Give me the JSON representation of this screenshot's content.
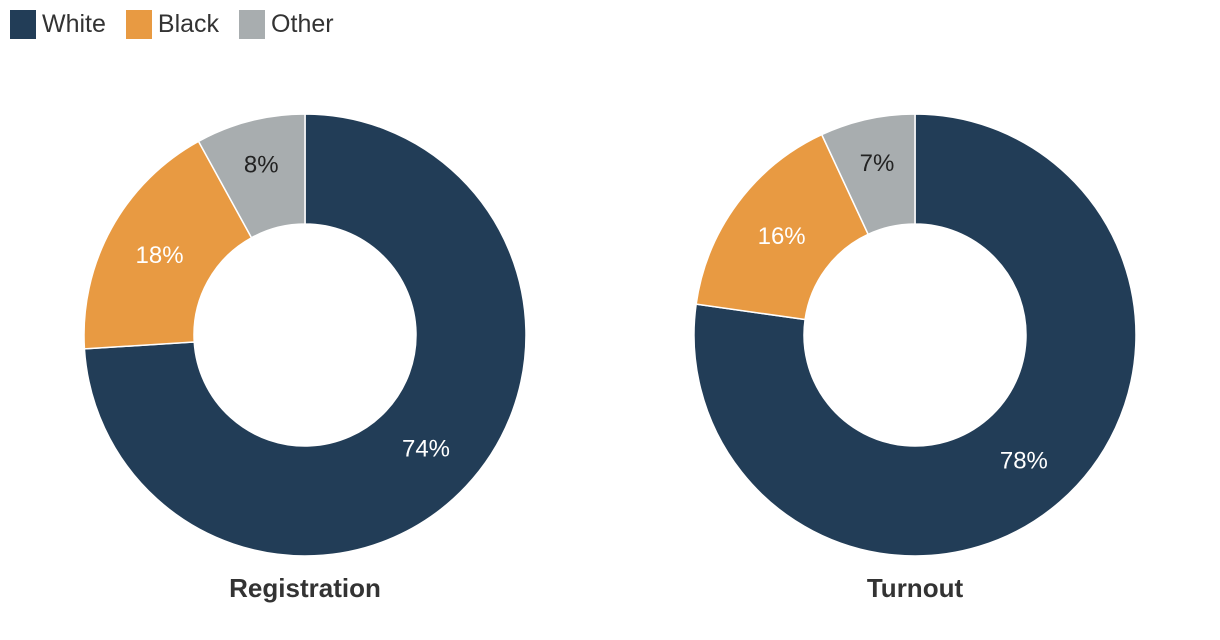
{
  "legend": {
    "items": [
      {
        "label": "White",
        "color": "#223d57"
      },
      {
        "label": "Black",
        "color": "#e89a42"
      },
      {
        "label": "Other",
        "color": "#a8adaf"
      }
    ]
  },
  "chart_data": [
    {
      "type": "pie",
      "title": "Registration",
      "categories": [
        "White",
        "Black",
        "Other"
      ],
      "values": [
        74,
        18,
        8
      ],
      "labels": [
        "74%",
        "18%",
        "8%"
      ],
      "colors": [
        "#223d57",
        "#e89a42",
        "#a8adaf"
      ],
      "label_colors": [
        "#ffffff",
        "#ffffff",
        "#222222"
      ],
      "donut": true,
      "legend": "top-left"
    },
    {
      "type": "pie",
      "title": "Turnout",
      "categories": [
        "White",
        "Black",
        "Other"
      ],
      "values": [
        78,
        16,
        7
      ],
      "labels": [
        "78%",
        "16%",
        "7%"
      ],
      "colors": [
        "#223d57",
        "#e89a42",
        "#a8adaf"
      ],
      "label_colors": [
        "#ffffff",
        "#ffffff",
        "#222222"
      ],
      "donut": true,
      "legend": "top-left"
    }
  ]
}
